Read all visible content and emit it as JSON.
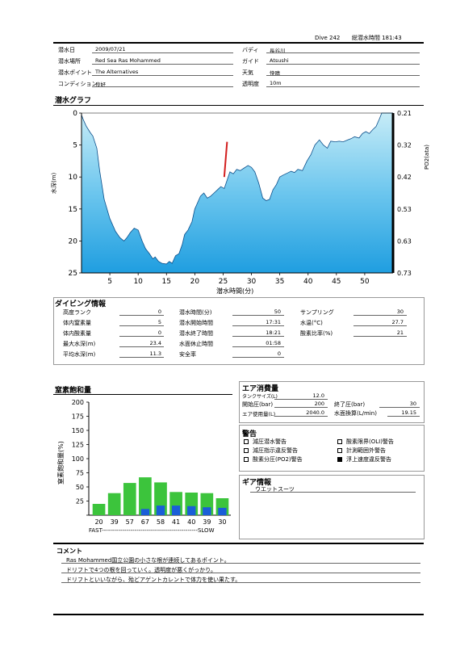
{
  "header": {
    "dive_label": "Dive 242",
    "total_label": "総潜水時間",
    "total_value": "181:43"
  },
  "info": {
    "date_label": "潜水日",
    "date": "2009/07/21",
    "place_label": "潜水場所",
    "place": "Red Sea Ras Mohammed",
    "point_label": "潜水ポイント",
    "point": "The  Alternatives",
    "condition_label": "コンディション",
    "condition": "良好",
    "buddy_label": "バディ",
    "buddy": "長谷川",
    "guide_label": "ガイド",
    "guide": "Atsushi",
    "weather_label": "天気",
    "weather": "快晴",
    "visibility_label": "透明度",
    "visibility": "10m"
  },
  "graph": {
    "title": "潜水グラフ",
    "xlabel": "潜水時間(分)",
    "ylabel": "水深(m)",
    "y2label": "PO2(ata)",
    "xticks": [
      "5",
      "10",
      "15",
      "20",
      "25",
      "30",
      "35",
      "40",
      "45",
      "50"
    ],
    "yticks": [
      "0",
      "5",
      "10",
      "15",
      "20",
      "25"
    ],
    "y2ticks": [
      "0.21",
      "0.32",
      "0.42",
      "0.53",
      "0.63",
      "0.73"
    ]
  },
  "chart_data": [
    {
      "type": "area",
      "xlabel": "潜水時間(分)",
      "ylabel": "水深(m)",
      "y2label": "PO2(ata)",
      "xlim": [
        0,
        55
      ],
      "ylim": [
        0,
        25
      ],
      "y_inverted": true,
      "y2ticks": [
        0.21,
        0.32,
        0.42,
        0.53,
        0.63,
        0.73
      ],
      "depth_profile": {
        "x": [
          0,
          0.3,
          0.8,
          1.5,
          2,
          2.7,
          3.2,
          4,
          5,
          6,
          6.8,
          7.5,
          8,
          8.6,
          9.3,
          10,
          10.7,
          11.3,
          12,
          12.6,
          13,
          13.6,
          14.2,
          15,
          15.5,
          16,
          16.6,
          17.2,
          17.8,
          18.2,
          18.8,
          19.5,
          20,
          20.5,
          21,
          21.6,
          22.2,
          22.8,
          23.4,
          24,
          24.6,
          25.2,
          25.7,
          26.2,
          26.8,
          27.4,
          28,
          28.7,
          29.4,
          30,
          30.6,
          31.3,
          32,
          32.6,
          33.2,
          33.8,
          34.4,
          35,
          35.6,
          36.3,
          37,
          37.6,
          38.2,
          39,
          39.8,
          40.5,
          41.2,
          42,
          42.7,
          43.4,
          44,
          44.8,
          45.5,
          46.2,
          47,
          47.6,
          48.2,
          49,
          49.6,
          50.2,
          50.8,
          51.4,
          52,
          52.6,
          53,
          55
        ],
        "y": [
          0.3,
          1,
          2,
          3,
          3.6,
          5.5,
          9,
          13.5,
          16.5,
          18.5,
          19.5,
          20,
          19.5,
          18.7,
          18,
          18.3,
          20,
          21.2,
          22,
          22.8,
          22.5,
          23.2,
          23.5,
          23.6,
          23.2,
          23.5,
          22.3,
          22,
          20.5,
          19,
          18.3,
          17,
          15,
          14,
          13,
          12.5,
          13.3,
          13,
          12.5,
          12,
          11.5,
          11.8,
          10.5,
          9.2,
          9.5,
          8.8,
          9,
          8.6,
          8.2,
          8.5,
          9.2,
          11,
          13.3,
          13.7,
          13.5,
          12,
          11.2,
          10,
          9.7,
          9.4,
          9.1,
          9.3,
          8.8,
          9,
          7.5,
          6.5,
          5,
          4.2,
          5,
          5.5,
          4.4,
          4.5,
          4.4,
          4.5,
          4.2,
          4,
          3.7,
          3.9,
          3.2,
          2.9,
          3.2,
          2.6,
          2.1,
          0.9,
          0,
          0
        ]
      },
      "ascent_warning_segment": {
        "x": [
          25.2,
          25.7
        ],
        "y": [
          10,
          4.5
        ]
      }
    },
    {
      "type": "bar",
      "title": "窒素飽和量",
      "ylabel": "窒素飽和量(%)",
      "ylim": [
        0,
        200
      ],
      "yticks": [
        "0",
        "25",
        "50",
        "75",
        "100",
        "125",
        "150",
        "175",
        "200"
      ],
      "categories": [
        "20",
        "39",
        "57",
        "67",
        "58",
        "41",
        "40",
        "39",
        "30"
      ],
      "series": [
        {
          "values": [
            20,
            39,
            57,
            67,
            58,
            41,
            40,
            39,
            30
          ]
        },
        {
          "values": [
            0,
            0,
            0,
            11,
            17,
            17,
            16,
            14,
            13
          ]
        }
      ],
      "xlabel": "FAST-----------------------------------------------SLOW"
    }
  ],
  "diving": {
    "title": "ダイビング情報",
    "rows": [
      {
        "label": "高度ランク",
        "value": "0"
      },
      {
        "label": "体内窒素量",
        "value": "5"
      },
      {
        "label": "体内酸素量",
        "value": "0"
      },
      {
        "label": "最大水深(m)",
        "value": "23.4"
      },
      {
        "label": "平均水深(m)",
        "value": "11.3"
      }
    ],
    "rows2": [
      {
        "label": "潜水時間(分)",
        "value": "50"
      },
      {
        "label": "潜水開始時間",
        "value": "17:31"
      },
      {
        "label": "潜水終了時間",
        "value": "18:21"
      },
      {
        "label": "水面休止時間",
        "value": "01:58"
      },
      {
        "label": "安全率",
        "value": "0"
      }
    ],
    "rows3": [
      {
        "label": "サンプリング",
        "value": "30"
      },
      {
        "label": "水温(°C)",
        "value": "27.7"
      },
      {
        "label": "酸素比率(%)",
        "value": "21"
      }
    ]
  },
  "nitrogen": {
    "title": "窒素飽和量"
  },
  "air": {
    "title": "エア消費量",
    "tank_label": "タンクサイズ(L)",
    "tank": "12.0",
    "start_label": "開始圧(bar)",
    "start": "200",
    "end_label": "終了圧(bar)",
    "end": "30",
    "use_label": "エア使用量(L)",
    "use": "2040.0",
    "surf_label": "水面換算(L/min)",
    "surf": "19.15"
  },
  "warnings": {
    "title": "警告",
    "items": [
      {
        "label": "減圧潜水警告",
        "checked": false
      },
      {
        "label": "酸素限界(OLI)警告",
        "checked": false
      },
      {
        "label": "減圧指示違反警告",
        "checked": false
      },
      {
        "label": "計測範囲外警告",
        "checked": false
      },
      {
        "label": "酸素分圧(PO2)警告",
        "checked": false
      },
      {
        "label": "浮上速度違反警告",
        "checked": true
      }
    ]
  },
  "gear": {
    "title": "ギア情報",
    "item": "ウエットスーツ"
  },
  "comment": {
    "title": "コメント",
    "lines": [
      "Ras  Mohammed国立公園の小さな根が連続してあるポイント。",
      "ドリフトで4つの根を回っていく。透明度が悪くがっかり。",
      "ドリフトといいながら、殆どアゲントカレントで体力を使い果たす。"
    ]
  },
  "colors": {
    "water_top": "#c7ecf7",
    "water_bottom": "#1f9ee0",
    "bar_green": "#3cc43c",
    "bar_blue": "#1a5ed8",
    "warn_red": "#d21e1e"
  }
}
